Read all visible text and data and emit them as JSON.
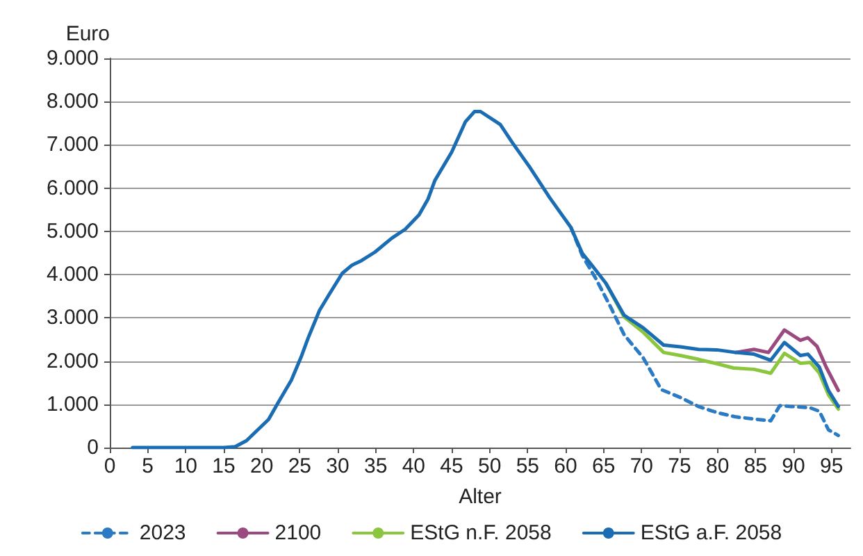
{
  "chart_data": {
    "type": "line",
    "xlabel": "Alter",
    "ylabel": "Euro",
    "xlim": [
      0,
      97.5
    ],
    "xticks": [
      0,
      5,
      10,
      15,
      20,
      25,
      30,
      35,
      40,
      45,
      50,
      55,
      60,
      65,
      70,
      75,
      80,
      85,
      90,
      95
    ],
    "ylim": [
      0,
      9000
    ],
    "yticks": [
      {
        "value": 0,
        "label": "0"
      },
      {
        "value": 1000,
        "label": "1.000"
      },
      {
        "value": 2000,
        "label": "2.000"
      },
      {
        "value": 3000,
        "label": "3.000"
      },
      {
        "value": 4000,
        "label": "4.000"
      },
      {
        "value": 5000,
        "label": "5.000"
      },
      {
        "value": 6000,
        "label": "6.000"
      },
      {
        "value": 7000,
        "label": "7.000"
      },
      {
        "value": 8000,
        "label": "8.000"
      },
      {
        "value": 9000,
        "label": "9.000"
      }
    ],
    "grid": "y",
    "legend": "bottom",
    "marker": "none",
    "series": [
      {
        "name": "2023",
        "color": "#2a7bc4",
        "line_style": "dashed",
        "x": [
          60.7,
          62.2,
          64,
          65.9,
          67.7,
          70.2,
          72.6,
          75.1,
          77.5,
          79.9,
          82.4,
          84.8,
          87,
          88.2,
          89.7,
          92.2,
          93.4,
          94.6,
          95.9
        ],
        "values": [
          5090,
          4440,
          3900,
          3260,
          2610,
          2080,
          1340,
          1160,
          950,
          810,
          710,
          660,
          620,
          970,
          950,
          920,
          840,
          410,
          280
        ]
      },
      {
        "name": "2100",
        "color": "#9b4a80",
        "line_style": "solid",
        "x": [
          82.4,
          84.8,
          86.7,
          88.8,
          90.9,
          91.9,
          93.1,
          94.3,
          95.9
        ],
        "values": [
          2200,
          2270,
          2200,
          2720,
          2480,
          2540,
          2340,
          1860,
          1320
        ]
      },
      {
        "name": "EStG n.F. 2058",
        "color": "#8cc63f",
        "line_style": "solid",
        "x": [
          65.3,
          67.7,
          70.2,
          72.9,
          75.1,
          77.5,
          79.9,
          82.1,
          84.8,
          87,
          88.8,
          90.9,
          92.2,
          93.4,
          94.6,
          95.9
        ],
        "values": [
          3800,
          3020,
          2670,
          2200,
          2130,
          2040,
          1940,
          1840,
          1810,
          1720,
          2180,
          1950,
          1970,
          1720,
          1220,
          890
        ]
      },
      {
        "name": "EStG a.F. 2058",
        "color": "#1a6db3",
        "line_style": "solid",
        "x": [
          3,
          15,
          16.5,
          18,
          20.9,
          22.1,
          23.9,
          25.2,
          26.1,
          27.6,
          28.8,
          30.6,
          31.9,
          33.1,
          34.9,
          37.1,
          38.9,
          40.7,
          41.9,
          42.8,
          45,
          46.8,
          48,
          48.8,
          51.4,
          53,
          55.3,
          57.9,
          60.7,
          62.2,
          63.4,
          65.3,
          67.7,
          70.2,
          72.9,
          75.1,
          77.5,
          79.9,
          82.4,
          84.8,
          87,
          88.8,
          90.9,
          91.9,
          93.4,
          94.6,
          95.9
        ],
        "values": [
          0,
          0,
          20,
          160,
          650,
          1020,
          1560,
          2100,
          2530,
          3170,
          3520,
          4030,
          4220,
          4320,
          4520,
          4840,
          5050,
          5380,
          5750,
          6180,
          6830,
          7530,
          7770,
          7770,
          7470,
          7050,
          6480,
          5780,
          5090,
          4490,
          4230,
          3800,
          3060,
          2770,
          2370,
          2330,
          2270,
          2260,
          2200,
          2160,
          2020,
          2430,
          2130,
          2160,
          1860,
          1320,
          950
        ]
      }
    ]
  }
}
